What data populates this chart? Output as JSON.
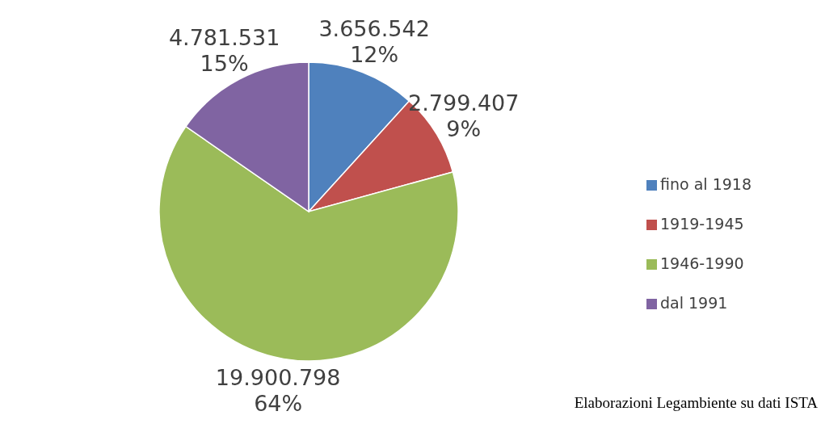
{
  "chart_data": {
    "type": "pie",
    "categories": [
      "fino al 1918",
      "1919-1945",
      "1946-1990",
      "dal 1991"
    ],
    "values": [
      3656542,
      2799407,
      19900798,
      4781531
    ],
    "value_labels": [
      "3.656.542\n12%",
      "2.799.407\n9%",
      "19.900.798\n64%",
      "4.781.531\n15%"
    ],
    "colors": [
      "#4f81bd",
      "#c0504d",
      "#9bbb59",
      "#8064a2"
    ],
    "legend": "right",
    "annotations": [
      "Elaborazioni Legambiente su dati ISTA"
    ]
  }
}
